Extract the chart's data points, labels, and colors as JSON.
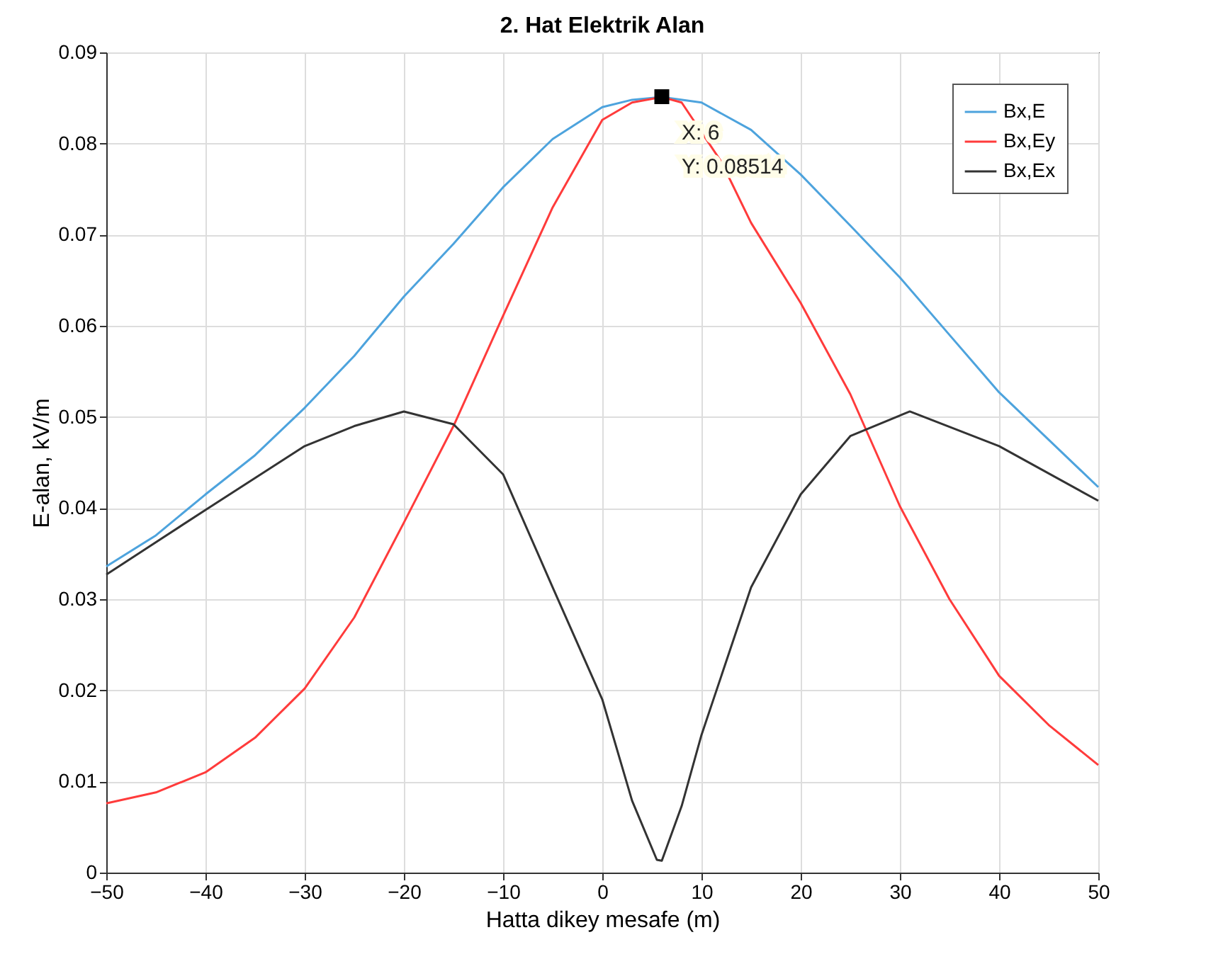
{
  "chart_data": {
    "type": "line",
    "title": "2. Hat Elektrik Alan",
    "xlabel": "Hatta dikey mesafe (m)",
    "ylabel": "E-alan, kV/m",
    "xlim": [
      -50,
      50
    ],
    "xticks": [
      -50,
      -40,
      -30,
      -20,
      -10,
      0,
      10,
      20,
      30,
      40,
      50
    ],
    "ylim": [
      0,
      0.09
    ],
    "yticks": [
      0,
      0.01,
      0.02,
      0.03,
      0.04,
      0.05,
      0.06,
      0.07,
      0.08,
      0.09
    ],
    "grid": true,
    "legend": "top right",
    "marker": "none",
    "line_style": "solid",
    "annotations": [
      {
        "text": "X: 6\nY: 0.08514",
        "x": 6,
        "y": 0.08514
      }
    ],
    "series": [
      {
        "name": "Bx,E",
        "color": "#4da3dd",
        "x": [
          -50,
          -45,
          -40,
          -35,
          -30,
          -25,
          -20,
          -15,
          -10,
          -5,
          0,
          3,
          6,
          10,
          15,
          20,
          25,
          30,
          35,
          40,
          45,
          50
        ],
        "values": [
          0.0336,
          0.037,
          0.0415,
          0.0458,
          0.051,
          0.0567,
          0.0632,
          0.069,
          0.0752,
          0.0805,
          0.084,
          0.0848,
          0.0851,
          0.0845,
          0.0815,
          0.0766,
          0.071,
          0.0653,
          0.059,
          0.0527,
          0.0475,
          0.0423
        ]
      },
      {
        "name": "Bx,Ey",
        "color": "#ff3b3b",
        "x": [
          -50,
          -45,
          -40,
          -35,
          -30,
          -25,
          -20,
          -15,
          -10,
          -5,
          0,
          3,
          6,
          8,
          12,
          15,
          20,
          25,
          30,
          35,
          40,
          45,
          50
        ],
        "values": [
          0.0076,
          0.0088,
          0.011,
          0.0148,
          0.0202,
          0.028,
          0.0384,
          0.049,
          0.0611,
          0.073,
          0.0826,
          0.0845,
          0.0851,
          0.0845,
          0.078,
          0.0713,
          0.0625,
          0.0525,
          0.0402,
          0.03,
          0.0216,
          0.0162,
          0.0118
        ]
      },
      {
        "name": "Bx,Ex",
        "color": "#333333",
        "x": [
          -50,
          -40,
          -30,
          -25,
          -20,
          -15,
          -10,
          -5,
          0,
          3,
          5.5,
          6,
          8,
          10,
          15,
          20,
          25,
          31,
          40,
          50
        ],
        "values": [
          0.0327,
          0.0398,
          0.0468,
          0.049,
          0.0506,
          0.0492,
          0.0437,
          0.0313,
          0.019,
          0.0079,
          0.0014,
          0.0013,
          0.0073,
          0.0151,
          0.0313,
          0.0415,
          0.0479,
          0.0506,
          0.0468,
          0.0408
        ]
      }
    ]
  }
}
